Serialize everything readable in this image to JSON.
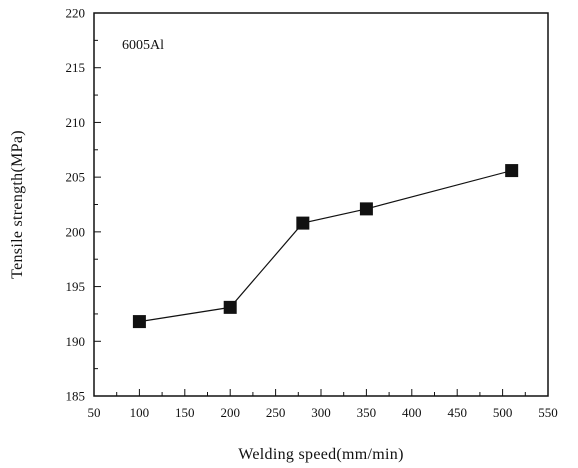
{
  "chart_data": {
    "type": "line",
    "annotation": "6005Al",
    "xlabel": "Welding speed(mm/min)",
    "ylabel": "Tensile strength(MPa)",
    "xlim": [
      50,
      550
    ],
    "ylim": [
      185,
      220
    ],
    "xticks": [
      50,
      100,
      150,
      200,
      250,
      300,
      350,
      400,
      450,
      500,
      550
    ],
    "yticks": [
      185,
      190,
      195,
      200,
      205,
      210,
      215,
      220
    ],
    "grid": false,
    "marker": "square",
    "line_style": "solid",
    "series": [
      {
        "x": [
          100,
          200,
          280,
          350,
          510
        ],
        "values": [
          191.8,
          193.1,
          200.8,
          202.1,
          205.6
        ]
      }
    ]
  }
}
